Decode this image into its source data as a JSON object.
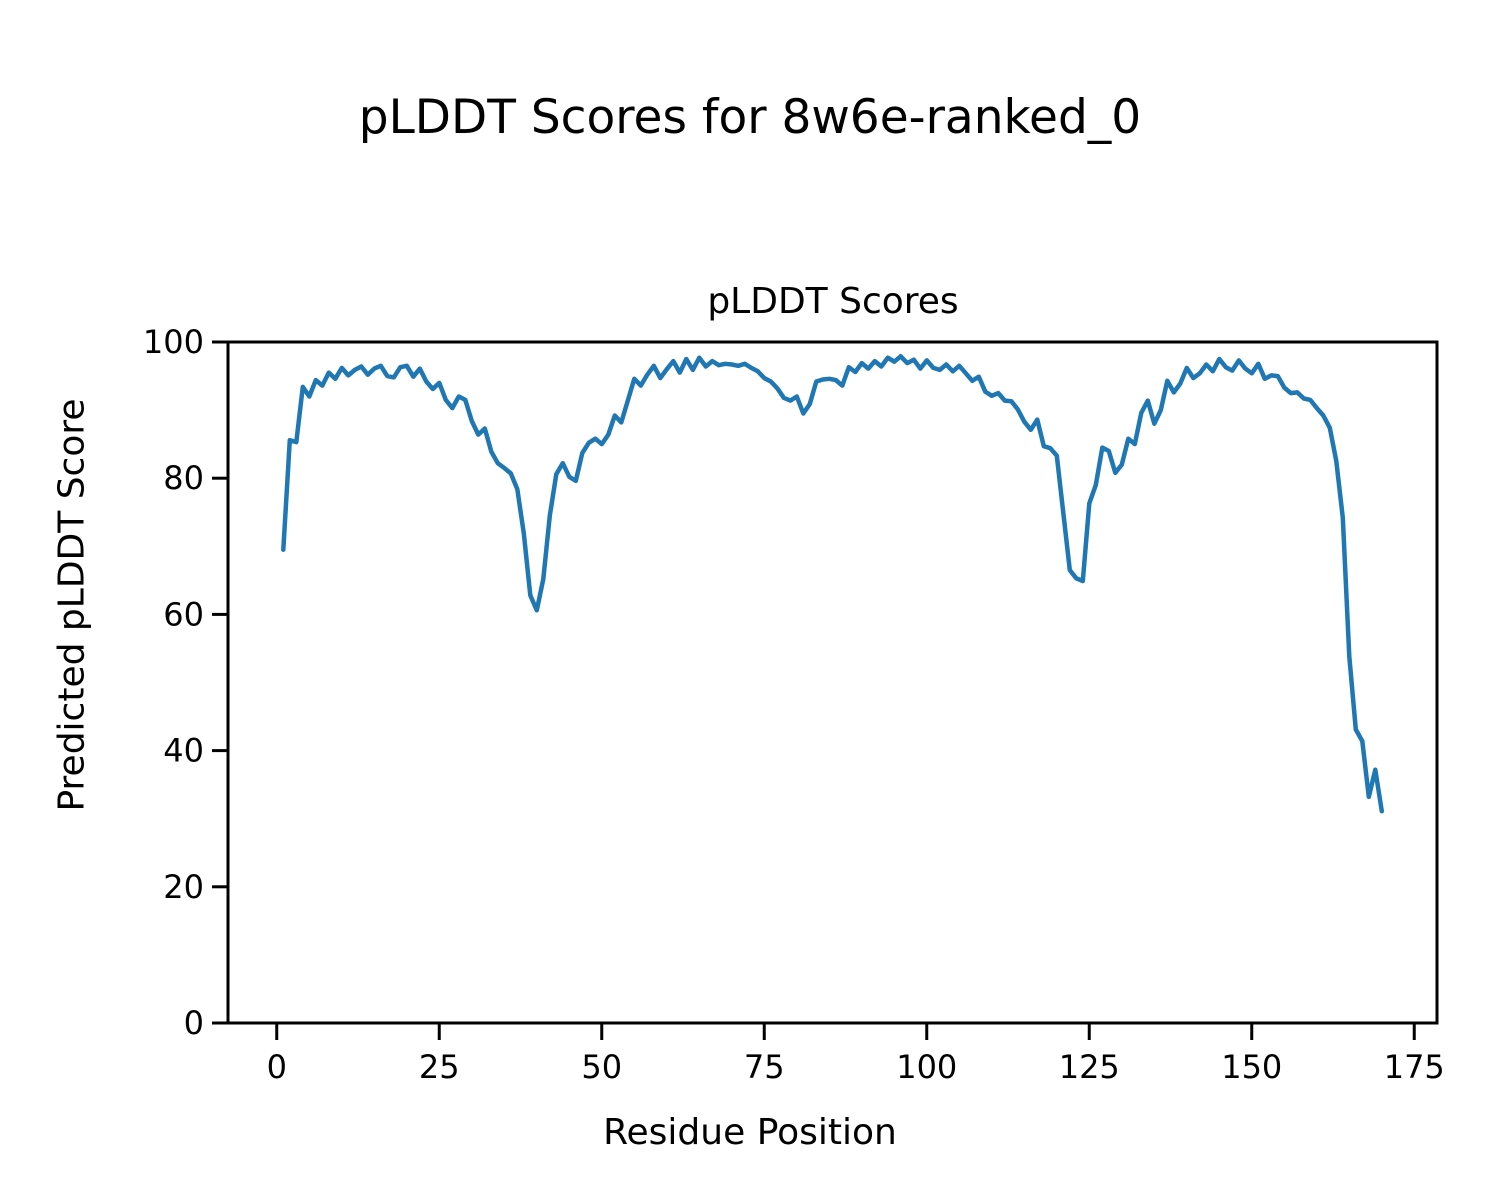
{
  "figure": {
    "suptitle": "pLDDT Scores for 8w6e-ranked_0"
  },
  "chart_data": {
    "type": "line",
    "title": "pLDDT Scores",
    "xlabel": "Residue Position",
    "ylabel": "Predicted pLDDT Score",
    "xlim": [
      -7.5,
      178.5
    ],
    "ylim": [
      0,
      100
    ],
    "x_ticks": [
      0,
      25,
      50,
      75,
      100,
      125,
      150,
      175
    ],
    "y_ticks": [
      0,
      20,
      40,
      60,
      80,
      100
    ],
    "grid": false,
    "legend_position": "none",
    "line_color": "#1f77b4",
    "line_width": 4.5,
    "series": [
      {
        "name": "pLDDT",
        "x_start": 1,
        "x_step": 1,
        "values": [
          69.5,
          85.6,
          85.3,
          93.4,
          92.0,
          94.4,
          93.6,
          95.5,
          94.6,
          96.2,
          95.1,
          95.9,
          96.4,
          95.2,
          96.1,
          96.5,
          95.0,
          94.8,
          96.3,
          96.5,
          94.9,
          96.1,
          94.2,
          93.1,
          94.0,
          91.5,
          90.3,
          92.0,
          91.5,
          88.4,
          86.4,
          87.3,
          83.9,
          82.2,
          81.5,
          80.7,
          78.4,
          71.9,
          62.8,
          60.6,
          65.2,
          74.5,
          80.6,
          82.2,
          80.2,
          79.6,
          83.7,
          85.2,
          85.8,
          85.0,
          86.4,
          89.2,
          88.2,
          91.4,
          94.6,
          93.6,
          95.2,
          96.5,
          94.7,
          96.0,
          97.2,
          95.5,
          97.5,
          95.9,
          97.7,
          96.4,
          97.2,
          96.6,
          96.8,
          96.7,
          96.5,
          96.8,
          96.2,
          95.7,
          94.7,
          94.2,
          93.2,
          91.8,
          91.4,
          92.0,
          89.5,
          90.9,
          94.2,
          94.5,
          94.6,
          94.4,
          93.6,
          96.3,
          95.6,
          96.9,
          96.1,
          97.2,
          96.4,
          97.7,
          97.1,
          97.9,
          96.9,
          97.4,
          96.1,
          97.3,
          96.2,
          95.9,
          96.7,
          95.7,
          96.5,
          95.4,
          94.3,
          94.9,
          92.7,
          92.1,
          92.5,
          91.4,
          91.3,
          90.1,
          88.3,
          87.1,
          88.6,
          84.7,
          84.4,
          83.3,
          74.9,
          66.5,
          65.3,
          64.9,
          76.3,
          79.0,
          84.5,
          84.0,
          80.8,
          82.0,
          85.8,
          85.0,
          89.6,
          91.4,
          88.0,
          90.0,
          94.3,
          92.6,
          93.9,
          96.2,
          94.7,
          95.4,
          96.7,
          95.7,
          97.5,
          96.3,
          95.8,
          97.3,
          96.1,
          95.4,
          96.8,
          94.6,
          95.1,
          95.0,
          93.3,
          92.5,
          92.6,
          91.7,
          91.5,
          90.3,
          89.2,
          87.4,
          82.5,
          74.2,
          53.8,
          43.1,
          41.4,
          33.2,
          37.2,
          31.1
        ]
      }
    ]
  }
}
